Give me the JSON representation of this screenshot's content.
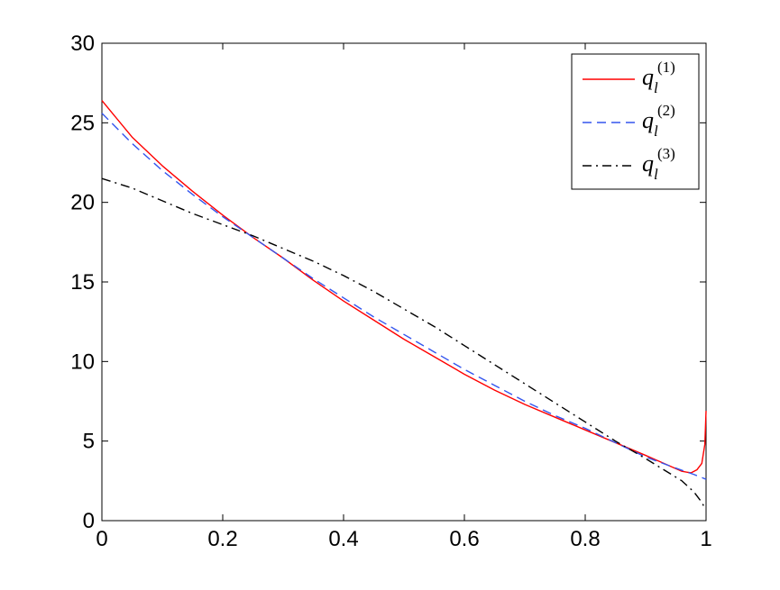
{
  "chart_data": {
    "type": "line",
    "title": "",
    "xlabel": "",
    "ylabel": "",
    "xlim": [
      0,
      1
    ],
    "ylim": [
      0,
      30
    ],
    "xticks": [
      "0",
      "0.2",
      "0.4",
      "0.6",
      "0.8",
      "1"
    ],
    "yticks": [
      "0",
      "5",
      "10",
      "15",
      "20",
      "25",
      "30"
    ],
    "grid": false,
    "legend_position": "top-right",
    "series": [
      {
        "name": "q_l^(1)",
        "legend_base": "q",
        "legend_sub": "l",
        "legend_sup": "(1)",
        "color": "#ff0000",
        "style": "solid",
        "x": [
          0,
          0.05,
          0.1,
          0.15,
          0.2,
          0.25,
          0.3,
          0.35,
          0.4,
          0.45,
          0.5,
          0.55,
          0.6,
          0.65,
          0.7,
          0.75,
          0.8,
          0.85,
          0.9,
          0.93,
          0.96,
          0.975,
          0.985,
          0.993,
          0.998,
          1.0
        ],
        "y": [
          26.4,
          24.1,
          22.3,
          20.7,
          19.2,
          17.8,
          16.5,
          15.1,
          13.8,
          12.6,
          11.4,
          10.3,
          9.2,
          8.2,
          7.3,
          6.5,
          5.7,
          4.9,
          4.1,
          3.6,
          3.1,
          3.0,
          3.2,
          3.6,
          4.8,
          6.9
        ]
      },
      {
        "name": "q_l^(2)",
        "legend_base": "q",
        "legend_sub": "l",
        "legend_sup": "(2)",
        "color": "#3355ee",
        "style": "dashed",
        "x": [
          0,
          0.05,
          0.1,
          0.15,
          0.2,
          0.25,
          0.3,
          0.35,
          0.4,
          0.45,
          0.5,
          0.55,
          0.6,
          0.65,
          0.7,
          0.75,
          0.8,
          0.85,
          0.9,
          0.95,
          0.98,
          1.0
        ],
        "y": [
          25.6,
          23.7,
          22.0,
          20.5,
          19.1,
          17.8,
          16.5,
          15.2,
          14.0,
          12.8,
          11.7,
          10.6,
          9.5,
          8.5,
          7.5,
          6.6,
          5.8,
          4.9,
          4.0,
          3.3,
          2.9,
          2.6
        ]
      },
      {
        "name": "q_l^(3)",
        "legend_base": "q",
        "legend_sub": "l",
        "legend_sup": "(3)",
        "color": "#000000",
        "style": "dashdot",
        "x": [
          0,
          0.05,
          0.1,
          0.15,
          0.2,
          0.25,
          0.3,
          0.35,
          0.4,
          0.45,
          0.5,
          0.55,
          0.6,
          0.65,
          0.7,
          0.75,
          0.8,
          0.85,
          0.9,
          0.93,
          0.96,
          0.98,
          0.99,
          1.0
        ],
        "y": [
          21.5,
          20.9,
          20.1,
          19.3,
          18.6,
          17.9,
          17.1,
          16.3,
          15.4,
          14.4,
          13.3,
          12.2,
          11.0,
          9.8,
          8.6,
          7.4,
          6.2,
          5.0,
          3.9,
          3.2,
          2.5,
          1.8,
          1.3,
          0.7
        ]
      }
    ]
  }
}
